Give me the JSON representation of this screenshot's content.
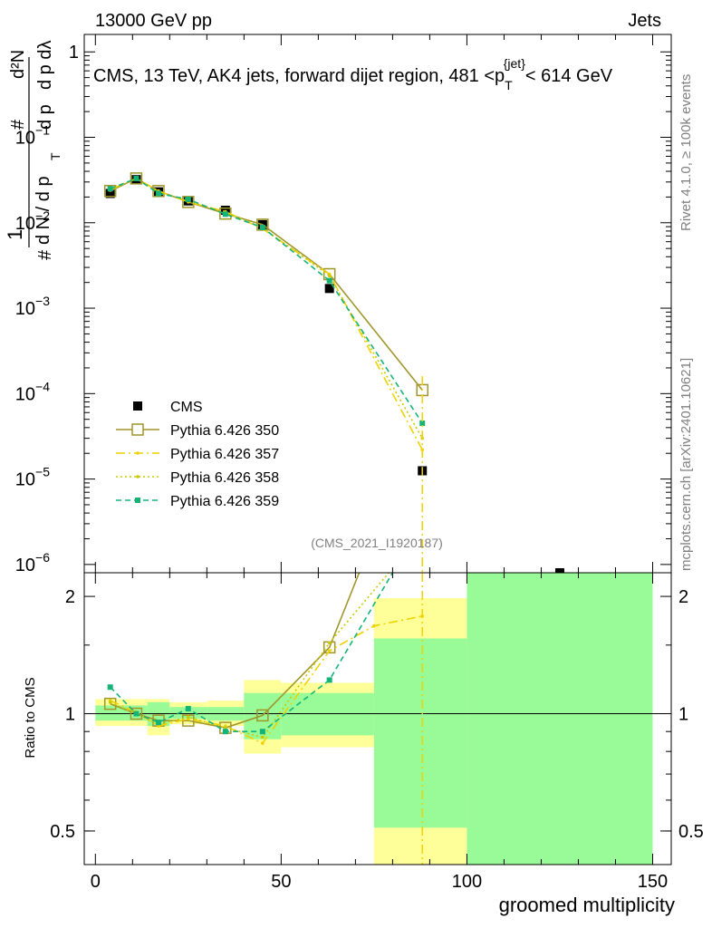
{
  "header": {
    "left": "13000 GeV pp",
    "right": "Jets"
  },
  "title": {
    "pre": "CMS, 13 TeV, AK4 jets, forward dijet region, 481 <p",
    "sub": "T",
    "sup": "{jet}",
    "post": "< 614 GeV"
  },
  "side_labels": {
    "rivet": "Rivet 4.1.0, ≥ 100k events",
    "mcplots": "mcplots.cern.ch [arXiv:2401.10621]"
  },
  "watermark": "(CMS_2021_I1920187)",
  "ylabel_main": {
    "num": "1",
    "den": "#",
    "left": "d N / d p",
    "sub_T": "T",
    "frac_num": "#",
    "frac_den": "d p",
    "d2N": "d²N",
    "dlambda": "d p  dλ"
  },
  "chart_data": [
    {
      "type": "scatter",
      "title": "CMS, 13 TeV, AK4 jets, forward dijet region, 481 < pT{jet} < 614 GeV",
      "xlabel": "groomed multiplicity",
      "ylabel": "1/N dN/dpT dλ",
      "yscale": "log",
      "xlim": [
        -3,
        155
      ],
      "ylim": [
        8e-07,
        1.6
      ],
      "y_ticks": [
        {
          "v": 1,
          "label": "1"
        },
        {
          "v": 0.1,
          "base": "10",
          "exp": "−1"
        },
        {
          "v": 0.01,
          "base": "10",
          "exp": "−2"
        },
        {
          "v": 0.001,
          "base": "10",
          "exp": "−3"
        },
        {
          "v": 0.0001,
          "base": "10",
          "exp": "−4"
        },
        {
          "v": 1e-05,
          "base": "10",
          "exp": "−5"
        },
        {
          "v": 1e-06,
          "base": "10",
          "exp": "−6"
        }
      ],
      "series": [
        {
          "name": "CMS",
          "color": "#000000",
          "style": "square-filled",
          "x": [
            4,
            11,
            17,
            25,
            35,
            45,
            63,
            88,
            125
          ],
          "y": [
            0.022,
            0.032,
            0.023,
            0.018,
            0.014,
            0.0095,
            0.0017,
            1.25e-05,
            8e-07
          ]
        },
        {
          "name": "Pythia 6.426 350",
          "color": "#a0962a",
          "style": "open-square-solid",
          "x": [
            4,
            11,
            17,
            25,
            35,
            45,
            63,
            88
          ],
          "y": [
            0.0235,
            0.033,
            0.0235,
            0.0175,
            0.0128,
            0.0095,
            0.0025,
            0.00011
          ]
        },
        {
          "name": "Pythia 6.426 357",
          "color": "#f0d200",
          "style": "dashdot",
          "x": [
            4,
            11,
            17,
            25,
            35,
            45,
            63,
            88
          ],
          "y": [
            0.0245,
            0.033,
            0.0235,
            0.0175,
            0.0135,
            0.0085,
            0.0025,
            2.2e-05
          ]
        },
        {
          "name": "Pythia 6.426 358",
          "color": "#c9c900",
          "style": "dotted",
          "x": [
            4,
            11,
            17,
            25,
            35,
            45,
            63,
            88
          ],
          "y": [
            0.024,
            0.033,
            0.023,
            0.0178,
            0.0133,
            0.0087,
            0.0024,
            3e-05
          ]
        },
        {
          "name": "Pythia 6.426 359",
          "color": "#14b478",
          "style": "dashed-square",
          "x": [
            4,
            11,
            17,
            25,
            35,
            45,
            63,
            88
          ],
          "y": [
            0.025,
            0.033,
            0.022,
            0.0188,
            0.0126,
            0.0088,
            0.0021,
            4.5e-05
          ]
        }
      ]
    },
    {
      "type": "scatter",
      "xlabel": "groomed multiplicity",
      "ylabel": "Ratio to CMS",
      "yscale": "log",
      "xlim": [
        -3,
        155
      ],
      "ylim": [
        0.41,
        2.3
      ],
      "x_ticks": [
        0,
        50,
        100,
        150
      ],
      "y_ticks": [
        {
          "v": 0.5,
          "label": "0.5"
        },
        {
          "v": 1,
          "label": "1"
        },
        {
          "v": 2,
          "label": "2"
        }
      ],
      "bands": [
        {
          "x0": 0,
          "x1": 7,
          "y_lo": 0.93,
          "y_hi": 1.09,
          "g_lo": 0.96,
          "g_hi": 1.05
        },
        {
          "x0": 7,
          "x1": 14,
          "y_lo": 0.93,
          "y_hi": 1.09,
          "g_lo": 0.96,
          "g_hi": 1.05
        },
        {
          "x0": 14,
          "x1": 20,
          "y_lo": 0.88,
          "y_hi": 1.09,
          "g_lo": 0.93,
          "g_hi": 1.07
        },
        {
          "x0": 20,
          "x1": 30,
          "y_lo": 0.94,
          "y_hi": 1.07,
          "g_lo": 0.97,
          "g_hi": 1.04
        },
        {
          "x0": 30,
          "x1": 40,
          "y_lo": 0.93,
          "y_hi": 1.08,
          "g_lo": 0.96,
          "g_hi": 1.04
        },
        {
          "x0": 40,
          "x1": 50,
          "y_lo": 0.79,
          "y_hi": 1.22,
          "g_lo": 0.86,
          "g_hi": 1.13
        },
        {
          "x0": 50,
          "x1": 75,
          "y_lo": 0.82,
          "y_hi": 1.2,
          "g_lo": 0.88,
          "g_hi": 1.13
        },
        {
          "x0": 75,
          "x1": 100,
          "y_lo": 0.41,
          "y_hi": 1.98,
          "g_lo": 0.51,
          "g_hi": 1.56
        },
        {
          "x0": 100,
          "x1": 150,
          "y_lo": 0.41,
          "y_hi": 2.3,
          "g_lo": 0.41,
          "g_hi": 2.3
        }
      ],
      "series": [
        {
          "name": "Pythia 6.426 350",
          "color": "#a0962a",
          "style": "open-square-solid",
          "x": [
            4,
            11,
            17,
            25,
            35,
            45,
            63,
            71
          ],
          "y": [
            1.06,
            1.0,
            0.96,
            0.96,
            0.92,
            0.99,
            1.48,
            2.3
          ]
        },
        {
          "name": "Pythia 6.426 357",
          "color": "#f0d200",
          "style": "dashdot",
          "x": [
            4,
            11,
            17,
            25,
            35,
            45,
            63,
            75,
            88
          ],
          "y": [
            1.08,
            1.01,
            0.93,
            0.97,
            0.93,
            0.84,
            1.45,
            1.68,
            1.78
          ]
        },
        {
          "name": "Pythia 6.426 358",
          "color": "#c9c900",
          "style": "dotted",
          "x": [
            4,
            11,
            17,
            25,
            35,
            45,
            63,
            79
          ],
          "y": [
            1.07,
            1.0,
            0.94,
            0.98,
            0.92,
            0.87,
            1.52,
            2.3
          ]
        },
        {
          "name": "Pythia 6.426 359",
          "color": "#14b478",
          "style": "dashed-square",
          "x": [
            4,
            11,
            17,
            25,
            35,
            45,
            63,
            80
          ],
          "y": [
            1.17,
            1.0,
            0.95,
            1.03,
            0.9,
            0.9,
            1.22,
            2.3
          ]
        }
      ],
      "vertical_line_x": 88
    }
  ]
}
